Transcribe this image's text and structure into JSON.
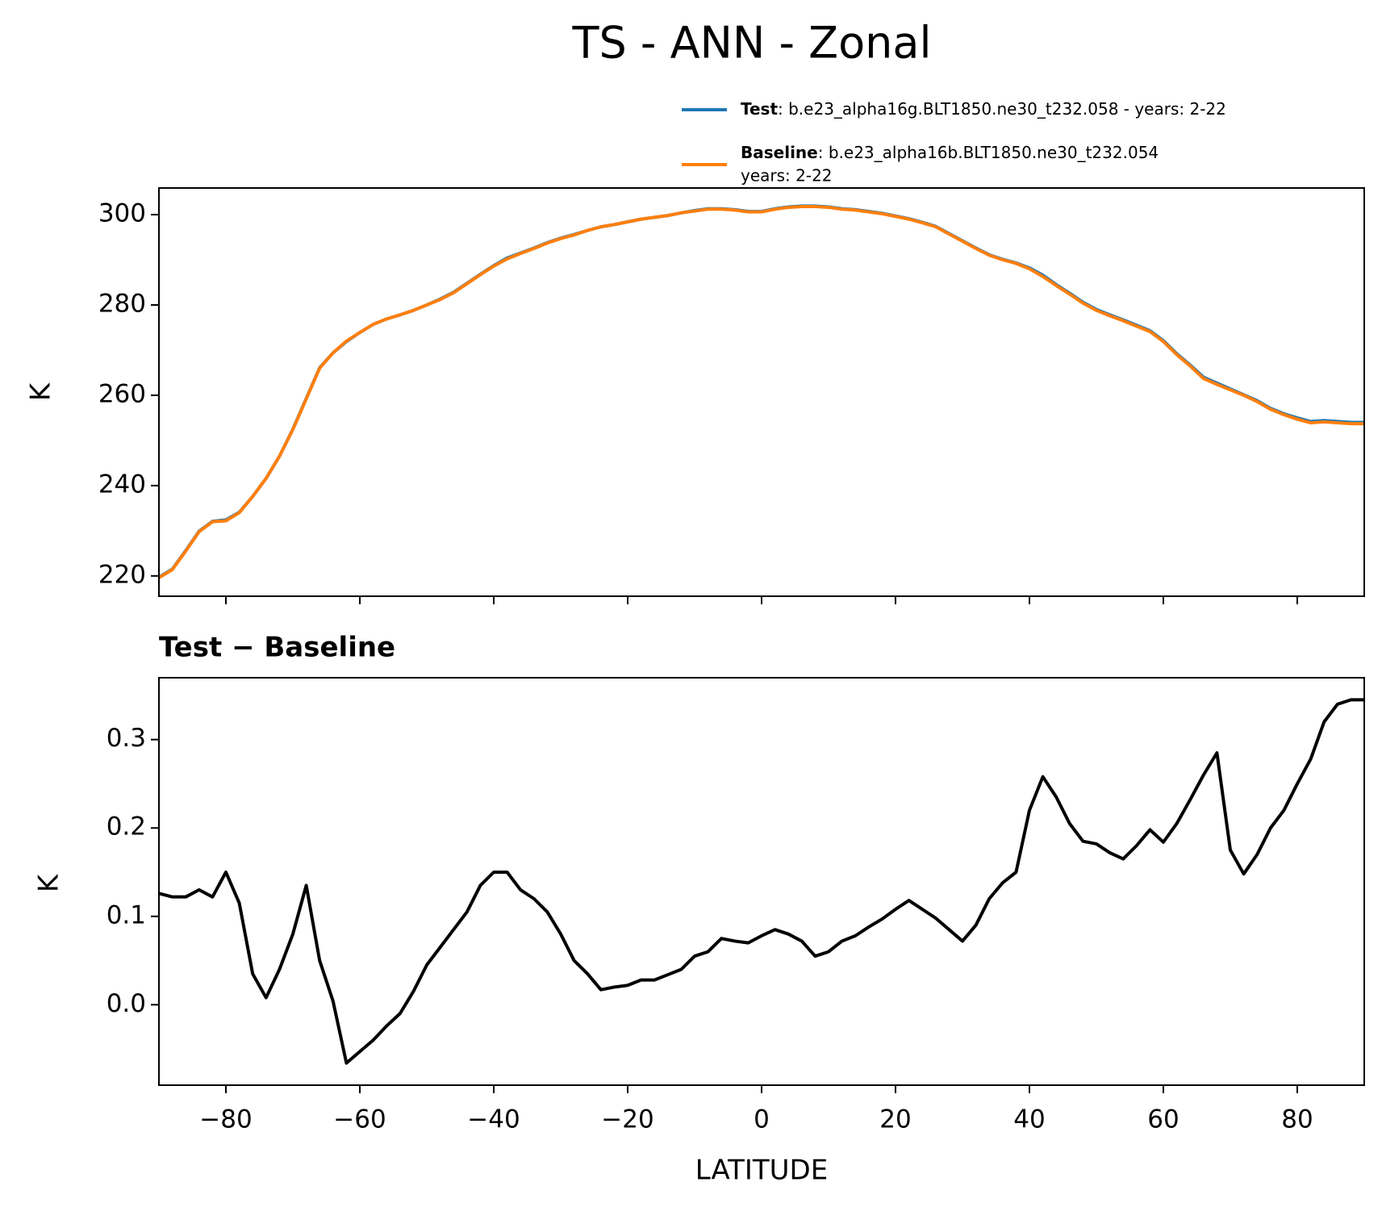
{
  "chart_data": [
    {
      "type": "line",
      "title": "TS - ANN - Zonal",
      "ylabel": "K",
      "x": [
        -90,
        -88,
        -86,
        -84,
        -82,
        -80,
        -78,
        -76,
        -74,
        -72,
        -70,
        -68,
        -66,
        -64,
        -62,
        -60,
        -58,
        -56,
        -54,
        -52,
        -50,
        -48,
        -46,
        -44,
        -42,
        -40,
        -38,
        -36,
        -34,
        -32,
        -30,
        -28,
        -26,
        -24,
        -22,
        -20,
        -18,
        -16,
        -14,
        -12,
        -10,
        -8,
        -6,
        -4,
        -2,
        0,
        2,
        4,
        6,
        8,
        10,
        12,
        14,
        16,
        18,
        20,
        22,
        24,
        26,
        28,
        30,
        32,
        34,
        36,
        38,
        40,
        42,
        44,
        46,
        48,
        50,
        52,
        54,
        56,
        58,
        60,
        62,
        64,
        66,
        68,
        70,
        72,
        74,
        76,
        78,
        80,
        82,
        84,
        86,
        88,
        90
      ],
      "series": [
        {
          "name": "Test",
          "description": [
            ": b.e23_alpha16g.BLT1850.ne30_t232.058 - years: 2-22"
          ],
          "color": "#1f77b4",
          "values": [
            219.7,
            221.5,
            225.6,
            229.9,
            232.1,
            232.4,
            234.1,
            237.6,
            241.6,
            246.5,
            252.5,
            259.3,
            266.1,
            269.4,
            271.9,
            273.9,
            275.7,
            276.9,
            277.8,
            278.8,
            280.0,
            281.3,
            282.8,
            284.8,
            286.8,
            288.7,
            290.4,
            291.5,
            292.6,
            293.8,
            294.8,
            295.6,
            296.5,
            297.3,
            297.8,
            298.4,
            299.0,
            299.4,
            299.8,
            300.4,
            300.9,
            301.3,
            301.3,
            301.1,
            300.7,
            300.7,
            301.3,
            301.7,
            301.9,
            301.9,
            301.7,
            301.3,
            301.1,
            300.7,
            300.3,
            299.7,
            299.1,
            298.3,
            297.4,
            295.8,
            294.2,
            292.6,
            291.1,
            290.1,
            289.3,
            288.2,
            286.6,
            284.5,
            282.6,
            280.6,
            279.0,
            277.8,
            276.7,
            275.5,
            274.3,
            272.1,
            269.2,
            266.7,
            264.0,
            262.7,
            261.4,
            260.1,
            258.8,
            257.1,
            255.9,
            255.0,
            254.2,
            254.4,
            254.2,
            254.0,
            254.0
          ]
        },
        {
          "name": "Baseline",
          "description": [
            ": b.e23_alpha16b.BLT1850.ne30_t232.054",
            "years: 2-22"
          ],
          "color": "#ff7f0e",
          "values": [
            219.6,
            221.4,
            225.5,
            229.8,
            232.0,
            232.2,
            234.0,
            237.6,
            241.6,
            246.5,
            252.4,
            259.2,
            266.0,
            269.4,
            272.0,
            273.9,
            275.7,
            276.9,
            277.8,
            278.8,
            280.0,
            281.2,
            282.7,
            284.7,
            286.7,
            288.6,
            290.2,
            291.4,
            292.5,
            293.7,
            294.7,
            295.5,
            296.5,
            297.3,
            297.8,
            298.4,
            299.0,
            299.4,
            299.8,
            300.4,
            300.8,
            301.2,
            301.2,
            301.0,
            300.6,
            300.6,
            301.2,
            301.6,
            301.8,
            301.8,
            301.6,
            301.2,
            301.0,
            300.6,
            300.2,
            299.6,
            299.0,
            298.2,
            297.3,
            295.7,
            294.1,
            292.5,
            291.0,
            290.0,
            289.2,
            288.0,
            286.3,
            284.3,
            282.4,
            280.4,
            278.8,
            277.6,
            276.5,
            275.3,
            274.1,
            271.9,
            269.0,
            266.5,
            263.7,
            262.4,
            261.2,
            260.0,
            258.6,
            256.9,
            255.7,
            254.7,
            253.9,
            254.1,
            253.9,
            253.7,
            253.7
          ]
        }
      ],
      "xlim": [
        -90,
        90
      ],
      "xticks": [
        -80,
        -60,
        -40,
        -20,
        0,
        20,
        40,
        60,
        80
      ],
      "ylim": [
        215.5,
        305.9
      ],
      "yticks": [
        220,
        240,
        260,
        280,
        300
      ],
      "legend": "upper right"
    },
    {
      "type": "line",
      "title": "Test − Baseline",
      "xlabel": "LATITUDE",
      "ylabel": "K",
      "x": [
        -90,
        -88,
        -86,
        -84,
        -82,
        -80,
        -78,
        -76,
        -74,
        -72,
        -70,
        -68,
        -66,
        -64,
        -62,
        -60,
        -58,
        -56,
        -54,
        -52,
        -50,
        -48,
        -46,
        -44,
        -42,
        -40,
        -38,
        -36,
        -34,
        -32,
        -30,
        -28,
        -26,
        -24,
        -22,
        -20,
        -18,
        -16,
        -14,
        -12,
        -10,
        -8,
        -6,
        -4,
        -2,
        0,
        2,
        4,
        6,
        8,
        10,
        12,
        14,
        16,
        18,
        20,
        22,
        24,
        26,
        28,
        30,
        32,
        34,
        36,
        38,
        40,
        42,
        44,
        46,
        48,
        50,
        52,
        54,
        56,
        58,
        60,
        62,
        64,
        66,
        68,
        70,
        72,
        74,
        76,
        78,
        80,
        82,
        84,
        86,
        88,
        90
      ],
      "series": [
        {
          "color": "#000000",
          "values": [
            0.126,
            0.122,
            0.122,
            0.13,
            0.122,
            0.15,
            0.115,
            0.035,
            0.008,
            0.04,
            0.08,
            0.135,
            0.05,
            0.004,
            -0.066,
            -0.053,
            -0.04,
            -0.024,
            -0.01,
            0.015,
            0.045,
            0.065,
            0.085,
            0.105,
            0.135,
            0.15,
            0.15,
            0.13,
            0.12,
            0.105,
            0.08,
            0.05,
            0.035,
            0.017,
            0.02,
            0.022,
            0.028,
            0.028,
            0.034,
            0.04,
            0.055,
            0.06,
            0.075,
            0.072,
            0.07,
            0.078,
            0.085,
            0.08,
            0.072,
            0.055,
            0.06,
            0.072,
            0.078,
            0.088,
            0.097,
            0.108,
            0.118,
            0.108,
            0.098,
            0.085,
            0.072,
            0.09,
            0.12,
            0.138,
            0.15,
            0.22,
            0.258,
            0.235,
            0.205,
            0.185,
            0.182,
            0.172,
            0.165,
            0.18,
            0.198,
            0.184,
            0.205,
            0.232,
            0.26,
            0.285,
            0.175,
            0.148,
            0.17,
            0.2,
            0.22,
            0.25,
            0.278,
            0.32,
            0.34,
            0.345,
            0.345
          ]
        }
      ],
      "xlim": [
        -90,
        90
      ],
      "xticks": [
        {
          "value": -80,
          "label": "−80"
        },
        {
          "value": -60,
          "label": "−60"
        },
        {
          "value": -40,
          "label": "−40"
        },
        {
          "value": -20,
          "label": "−20"
        },
        0,
        20,
        40,
        60,
        80
      ],
      "ylim": [
        -0.091,
        0.37
      ],
      "yticks": [
        {
          "value": 0.0,
          "label": "0.0"
        },
        0.1,
        0.2,
        0.3
      ]
    }
  ]
}
